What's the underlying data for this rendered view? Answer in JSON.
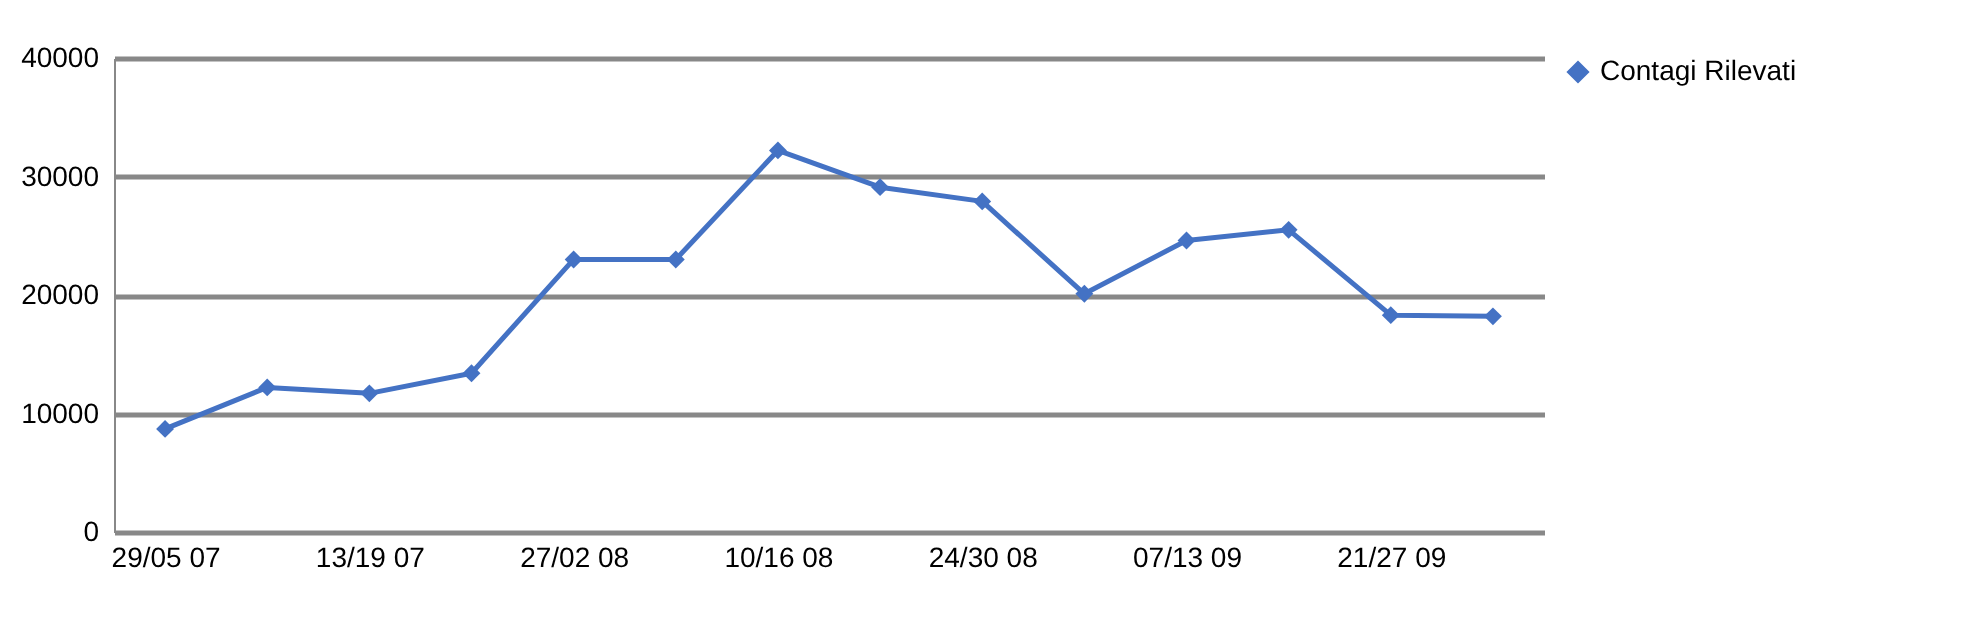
{
  "chart_data": {
    "type": "line",
    "categories": [
      "29/05 07",
      null,
      "13/19 07",
      null,
      "27/02 08",
      null,
      "10/16 08",
      null,
      "24/30 08",
      null,
      "07/13 09",
      null,
      "21/27 09",
      null
    ],
    "series": [
      {
        "name": "Contagi Rilevati",
        "color": "#4472c4",
        "values": [
          8700,
          12200,
          11700,
          13400,
          23000,
          23000,
          32200,
          29100,
          27900,
          20100,
          24600,
          25500,
          18300,
          18200
        ]
      }
    ],
    "ylim": [
      0,
      40000
    ],
    "yticks": [
      0,
      10000,
      20000,
      30000,
      40000
    ],
    "grid": "y",
    "legend": "right",
    "marker": "diamond"
  }
}
